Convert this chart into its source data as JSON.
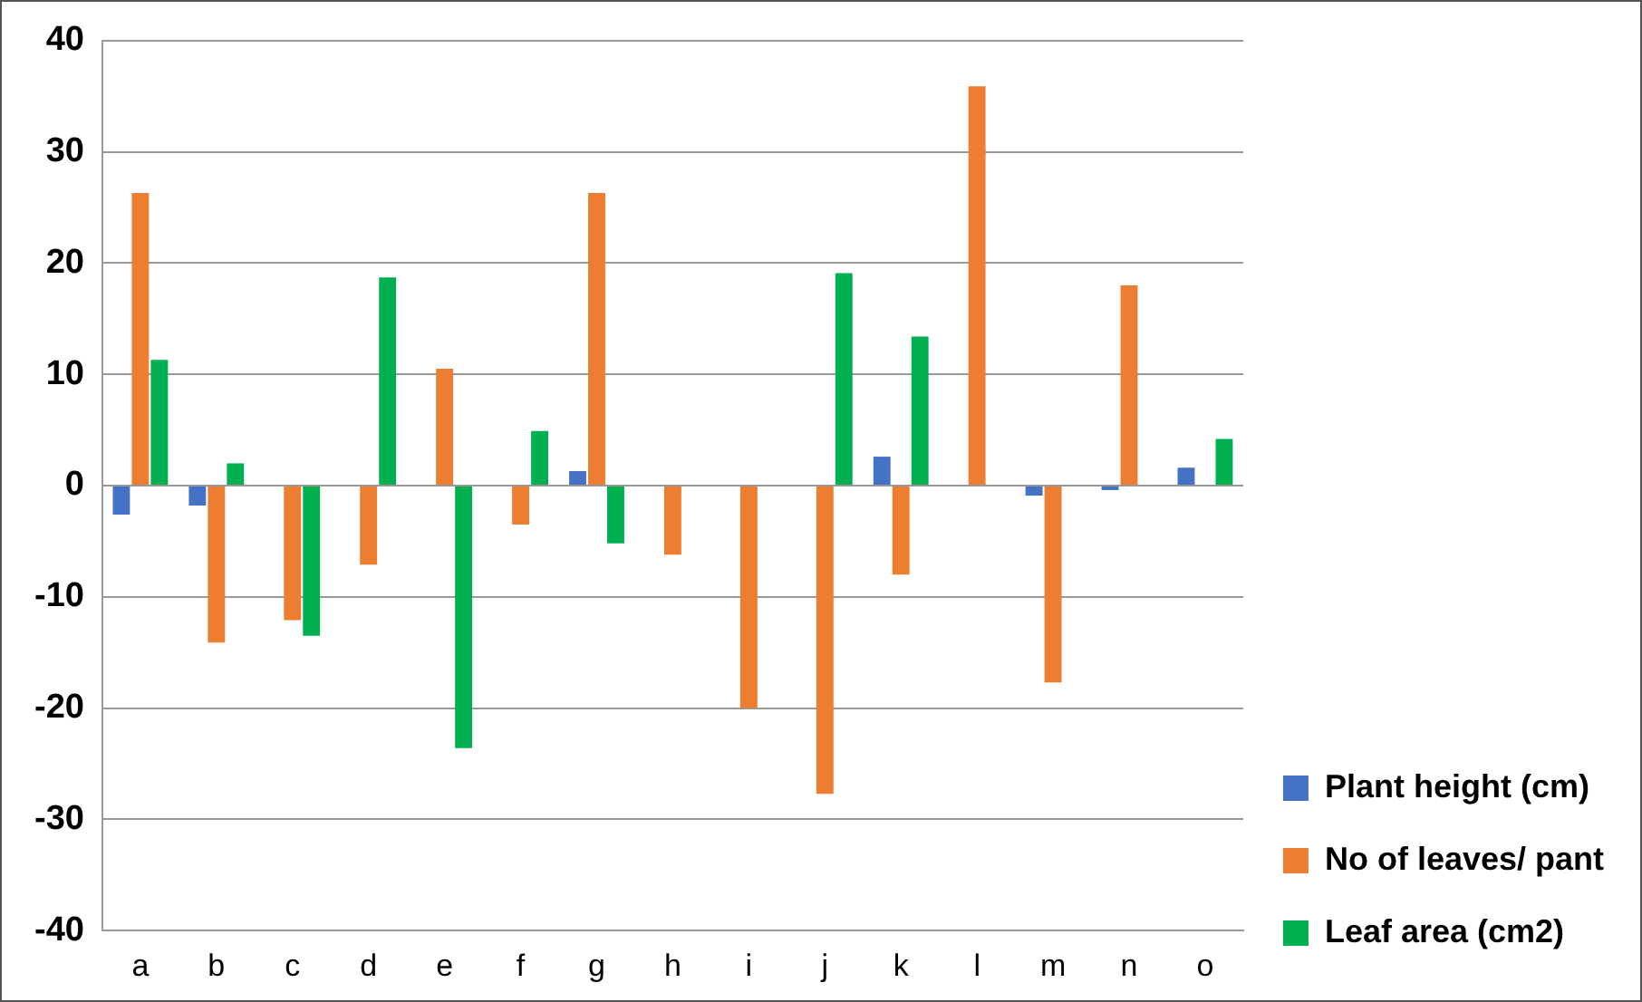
{
  "chart_data": {
    "type": "bar",
    "categories": [
      "a",
      "b",
      "c",
      "d",
      "e",
      "f",
      "g",
      "h",
      "i",
      "j",
      "k",
      "l",
      "m",
      "n",
      "o"
    ],
    "series": [
      {
        "name": "Plant height (cm)",
        "color": "#4472c4",
        "values": [
          -2.6,
          -1.8,
          null,
          null,
          null,
          null,
          1.3,
          null,
          null,
          null,
          2.6,
          null,
          -0.9,
          -0.4,
          1.6
        ]
      },
      {
        "name": "No of leaves/ pant",
        "color": "#ed7d31",
        "values": [
          26.3,
          -14.1,
          -12.1,
          -7.1,
          10.5,
          -3.5,
          26.3,
          -6.2,
          -20,
          -27.7,
          -8.0,
          35.9,
          -17.7,
          18.0,
          null
        ]
      },
      {
        "name": "Leaf area (cm2)",
        "color": "#00b050",
        "values": [
          11.3,
          2.0,
          -13.5,
          18.7,
          -23.6,
          4.9,
          -5.2,
          null,
          null,
          19.1,
          13.4,
          null,
          null,
          null,
          4.2
        ]
      }
    ],
    "ylim": [
      -40,
      40
    ],
    "yticks": [
      -40,
      -30,
      -20,
      -10,
      0,
      10,
      20,
      30,
      40
    ],
    "grid": "y",
    "legend": "right"
  }
}
